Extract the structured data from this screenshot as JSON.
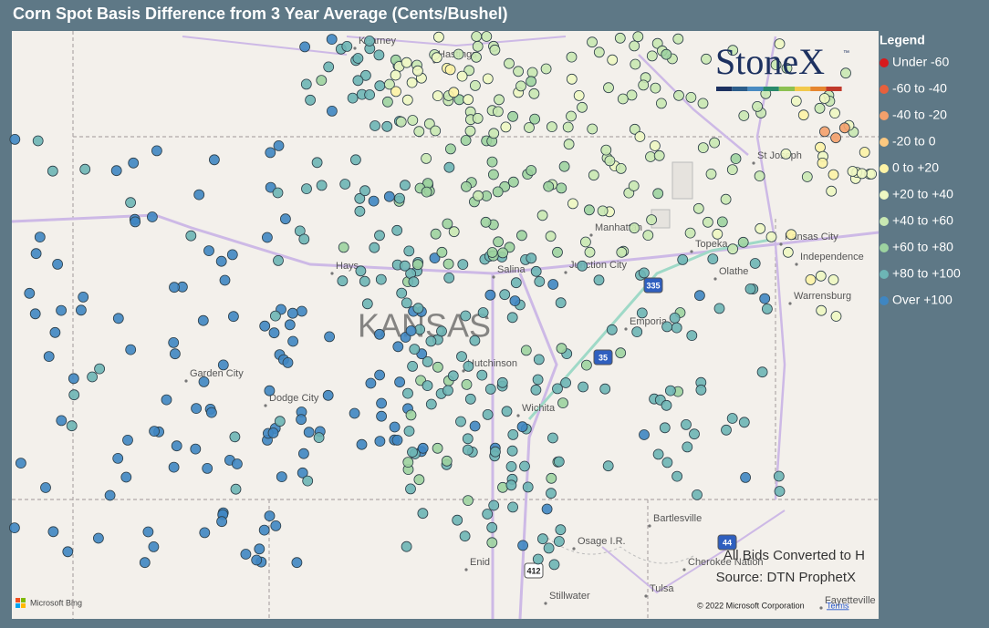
{
  "header": {
    "title": "Corn Spot Basis Difference from 3 Year Average (Cents/Bushel)"
  },
  "logo": {
    "text": "StoneX",
    "tm": "™"
  },
  "legend": {
    "title": "Legend",
    "items": [
      {
        "label": "Under -60",
        "color": "#d7191c"
      },
      {
        "label": "-60 to -40",
        "color": "#e8603c"
      },
      {
        "label": "-40 to -20",
        "color": "#f4a06b"
      },
      {
        "label": "-20 to 0",
        "color": "#fdc980"
      },
      {
        "label": "0 to +20",
        "color": "#fdf3a6"
      },
      {
        "label": "+20 to +40",
        "color": "#eef7c2"
      },
      {
        "label": "+40 to +60",
        "color": "#c9e8b2"
      },
      {
        "label": "+60 to +80",
        "color": "#9dd3a0"
      },
      {
        "label": "+80 to +100",
        "color": "#6db5b5"
      },
      {
        "label": "Over +100",
        "color": "#3f86c2"
      }
    ]
  },
  "map": {
    "state": "KANSAS",
    "labels": [
      "Kearney",
      "Hastings",
      "St Joseph",
      "Manhattan",
      "Topeka",
      "Kansas City",
      "Independence",
      "Olathe",
      "Junction City",
      "Salina",
      "Hays",
      "Emporia",
      "Warrensburg",
      "Garden City",
      "Dodge City",
      "Hutchinson",
      "Wichita",
      "Bartlesville",
      "Osage I.R.",
      "Enid",
      "Tulsa",
      "Cherokee Nation",
      "Stillwater",
      "Fayetteville"
    ],
    "shields": [
      "335",
      "35",
      "412",
      "44"
    ]
  },
  "notes": [
    "All Bids Converted to H",
    "Source: DTN ProphetX"
  ],
  "footer": {
    "provider": "Microsoft Bing",
    "copyright": "© 2022 Microsoft Corporation",
    "terms": "Terms"
  }
}
